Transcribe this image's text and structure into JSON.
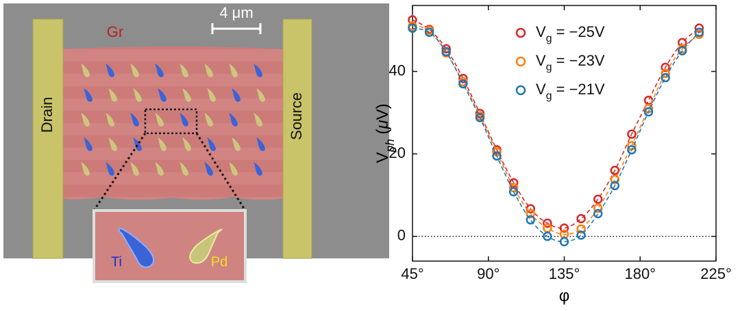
{
  "image": {
    "labels": {
      "graphene": "Gr",
      "scale_bar": "4 μm",
      "drain": "Drain",
      "source": "Source",
      "inset_left": "Ti",
      "inset_right": "Pd"
    }
  },
  "chart_data": {
    "type": "scatter",
    "xlabel": "φ",
    "ylabel": "Vph (μV)",
    "x": [
      45,
      55,
      65,
      75,
      85,
      95,
      105,
      115,
      125,
      135,
      145,
      155,
      165,
      175,
      185,
      195,
      205,
      215
    ],
    "series": [
      {
        "name": "Vg = −25V",
        "color": "#d62728",
        "values": [
          52.5,
          50.2,
          45.5,
          38.3,
          29.8,
          21,
          13,
          6.7,
          3.2,
          2,
          4.3,
          9,
          16,
          24.8,
          33,
          41,
          47,
          50.5
        ]
      },
      {
        "name": "Vg = −23V",
        "color": "#ff7f0e",
        "values": [
          51,
          50,
          44.5,
          37.5,
          29.2,
          20.5,
          11.8,
          5.5,
          2,
          0.5,
          1.8,
          6.8,
          13.8,
          22,
          31,
          39.5,
          45.5,
          49
        ]
      },
      {
        "name": "Vg = −21V",
        "color": "#1f77b4",
        "values": [
          50.5,
          49.5,
          44.8,
          37,
          28.8,
          19.5,
          10.8,
          4,
          0,
          -1.3,
          0.3,
          5.5,
          12.3,
          21,
          30.2,
          38.5,
          45,
          49.5
        ]
      }
    ],
    "fit_line_style": "dashed",
    "reference_line": 0,
    "xlim": [
      45,
      225
    ],
    "ylim": [
      -6,
      56
    ],
    "xticks": [
      {
        "value": 45,
        "label": "45°"
      },
      {
        "value": 90,
        "label": "90°"
      },
      {
        "value": 135,
        "label": "135°"
      },
      {
        "value": 180,
        "label": "180°"
      },
      {
        "value": 225,
        "label": "225°"
      }
    ],
    "yticks": [
      0,
      20,
      40
    ],
    "legend": "upper center",
    "grid": false
  }
}
